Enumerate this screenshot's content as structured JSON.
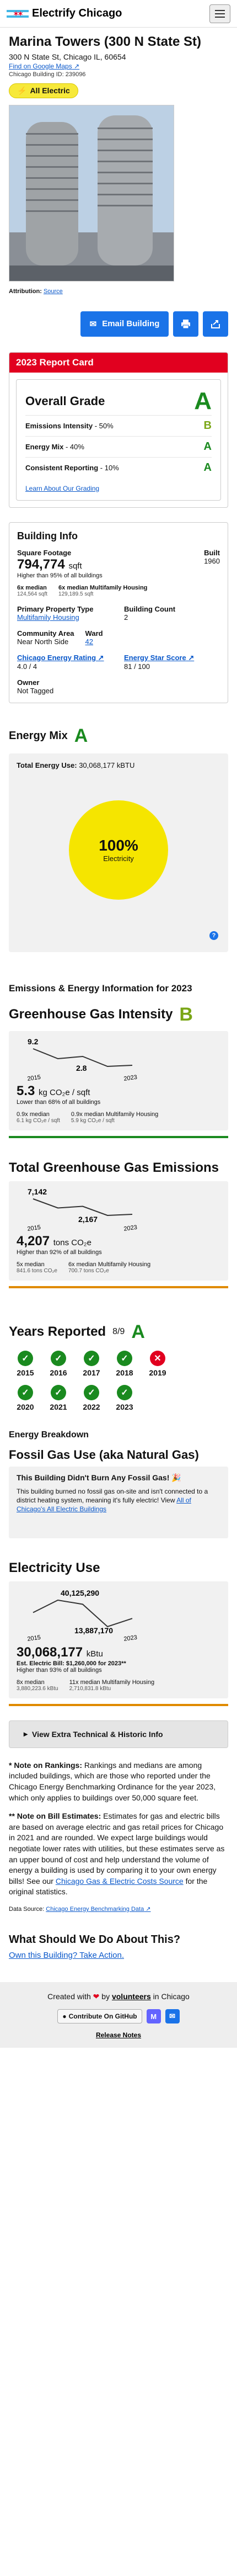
{
  "header": {
    "brand": "Electrify Chicago"
  },
  "building": {
    "title": "Marina Towers (300 N State St)",
    "address": "300 N State St, Chicago IL, 60654",
    "gmaps": "Find on Google Maps",
    "building_id": "Chicago Building ID: 239096",
    "badge": "All Electric",
    "attribution_label": "Attribution:",
    "attribution_link": "Source"
  },
  "actions": {
    "email_label": "Email Building"
  },
  "report": {
    "header": "2023 Report Card",
    "overall_label": "Overall Grade",
    "overall_grade": "A",
    "metrics": [
      {
        "label": "Emissions Intensity",
        "value": "- 50%",
        "grade": "B"
      },
      {
        "label": "Energy Mix",
        "value": "- 40%",
        "grade": "A"
      },
      {
        "label": "Consistent Reporting",
        "value": "- 10%",
        "grade": "A"
      }
    ],
    "learn": "Learn About Our Grading"
  },
  "info": {
    "title": "Building Info",
    "sqft_label": "Square Footage",
    "sqft_value": "794,774",
    "sqft_unit": "sqft",
    "sqft_note": "Higher than 95% of all buildings",
    "built_label": "Built",
    "built_value": "1960",
    "median_a_label": "6x median",
    "median_a_value": "124,564 sqft",
    "median_b_label": "6x median Multifamily Housing",
    "median_b_value": "129,189.5 sqft",
    "ptype_label": "Primary Property Type",
    "ptype_value": "Multifamily Housing",
    "count_label": "Building Count",
    "count_value": "2",
    "area_label": "Community Area",
    "area_value": "Near North Side",
    "ward_label": "Ward",
    "ward_value": "42",
    "rating_label": "Chicago Energy Rating",
    "rating_value": "4.0 / 4",
    "star_label": "Energy Star Score",
    "star_value": "81 / 100",
    "owner_label": "Owner",
    "owner_value": "Not Tagged"
  },
  "energy_mix": {
    "title": "Energy Mix",
    "grade": "A",
    "total_label": "Total Energy Use:",
    "total_value": "30,068,177 kBTU",
    "pct": "100%",
    "pct_label": "Electricity",
    "help": "?"
  },
  "emissions_heading": "Emissions & Energy Information for 2023",
  "ghg_intensity": {
    "title": "Greenhouse Gas Intensity",
    "grade": "B",
    "chart_data": {
      "type": "line",
      "x": [
        "2015",
        "2023"
      ],
      "y_start": 9.2,
      "y_end": 2.8,
      "points": [
        9.2,
        5.6,
        6.4,
        2.8,
        3.2
      ],
      "label_start": "9.2",
      "label_end": "2.8",
      "xlabel_start": "2015",
      "xlabel_end": "2023"
    },
    "value": "5.3",
    "unit": "kg CO₂e / sqft",
    "note": "Lower than 68% of all buildings",
    "median_a_label": "0.9x median",
    "median_a_value": "6.1 kg CO₂e / sqft",
    "median_b_label": "0.9x median Multifamily Housing",
    "median_b_value": "5.9 kg CO₂e / sqft"
  },
  "ghg_total": {
    "title": "Total Greenhouse Gas Emissions",
    "chart_data": {
      "type": "line",
      "x": [
        "2015",
        "2023"
      ],
      "points": [
        7142,
        4400,
        4900,
        2167,
        2500
      ],
      "label_start": "7,142",
      "label_end": "2,167",
      "xlabel_start": "2015",
      "xlabel_end": "2023"
    },
    "value": "4,207",
    "unit": "tons CO₂e",
    "note": "Higher than 92% of all buildings",
    "median_a_label": "5x median",
    "median_a_value": "841.6 tons CO₂e",
    "median_b_label": "6x median Multifamily Housing",
    "median_b_value": "700.7 tons CO₂e"
  },
  "years": {
    "title": "Years Reported",
    "count": "8/9",
    "grade": "A",
    "items": [
      {
        "year": "2015",
        "ok": true
      },
      {
        "year": "2016",
        "ok": true
      },
      {
        "year": "2017",
        "ok": true
      },
      {
        "year": "2018",
        "ok": true
      },
      {
        "year": "2019",
        "ok": false
      },
      {
        "year": "2020",
        "ok": true
      },
      {
        "year": "2021",
        "ok": true
      },
      {
        "year": "2022",
        "ok": true
      },
      {
        "year": "2023",
        "ok": true
      }
    ]
  },
  "breakdown": {
    "title": "Energy Breakdown",
    "gas_title": "Fossil Gas Use (aka Natural Gas)",
    "gas_head": "This Building Didn't Burn Any Fossil Gas! 🎉",
    "gas_body": "This building burned no fossil gas on-site and isn't connected to a district heating system, meaning it's fully electric! View",
    "gas_link": "All of Chicago's All Electric Buildings"
  },
  "electricity": {
    "title": "Electricity Use",
    "chart_data": {
      "type": "line",
      "x": [
        "2015",
        "2023"
      ],
      "points": [
        27800000,
        40125290,
        36000000,
        13887170,
        22000000
      ],
      "label_max": "40,125,290",
      "label_min": "13,887,170",
      "xlabel_start": "2015",
      "xlabel_end": "2023"
    },
    "value": "30,068,177",
    "unit": "kBtu",
    "bill": "Est. Electric Bill: $1,260,000 for 2023**",
    "note": "Higher than 93% of all buildings",
    "median_a_label": "8x median",
    "median_a_value": "3,880,223.6 kBtu",
    "median_b_label": "11x median Multifamily Housing",
    "median_b_value": "2,710,831.8 kBtu"
  },
  "extra": {
    "label": "View Extra Technical & Historic Info"
  },
  "notes": {
    "rankings_label": "* Note on Rankings:",
    "rankings_body": "Rankings and medians are among included buildings, which are those who reported under the Chicago Energy Benchmarking Ordinance for the year 2023, which only applies to buildings over 50,000 square feet.",
    "bill_label": "** Note on Bill Estimates:",
    "bill_body": "Estimates for gas and electric bills are based on average electric and gas retail prices for Chicago in 2021 and are rounded. We expect large buildings would negotiate lower rates with utilities, but these estimates serve as an upper bound of cost and help understand the volume of energy a building is used by comparing it to your own energy bills! See our",
    "bill_link": "Chicago Gas & Electric Costs Source",
    "bill_tail": "for the original statistics.",
    "datasrc_label": "Data Source:",
    "datasrc_link": "Chicago Energy Benchmarking Data"
  },
  "cta": {
    "title": "What Should We Do About This?",
    "link": "Own this Building? Take Action."
  },
  "footer": {
    "created": "Created with",
    "by": "by",
    "volunteers": "volunteers",
    "in": "in Chicago",
    "github": "Contribute On GitHub",
    "mastodon": "M",
    "email": "✉",
    "release": "Release Notes"
  }
}
